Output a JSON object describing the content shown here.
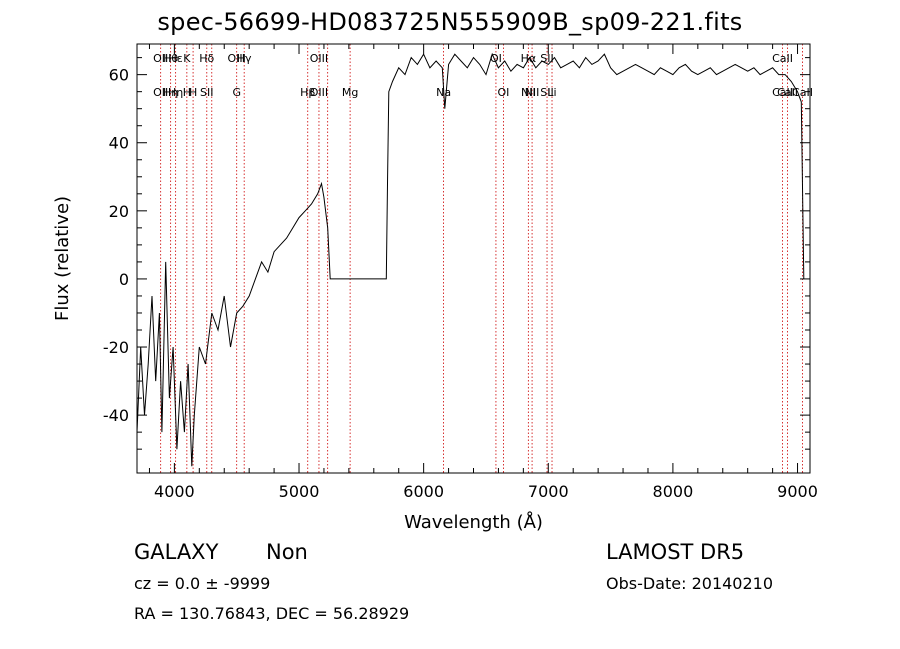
{
  "chart_data": {
    "type": "line",
    "title": "spec-56699-HD083725N555909B_sp09-221.fits",
    "xlabel": "Wavelength (Å)",
    "ylabel": "Flux (relative)",
    "xlim": [
      3700,
      9100
    ],
    "ylim": [
      -57,
      69
    ],
    "xticks": [
      4000,
      5000,
      6000,
      7000,
      8000,
      9000
    ],
    "yticks": [
      -40,
      -20,
      0,
      20,
      40,
      60
    ],
    "grid": false,
    "series": [
      {
        "x": [
          3700,
          3730,
          3760,
          3790,
          3820,
          3850,
          3880,
          3900,
          3930,
          3960,
          3990,
          4020,
          4050,
          4080,
          4110,
          4140,
          4160,
          4200,
          4250,
          4300,
          4350,
          4400,
          4450,
          4500,
          4550,
          4600,
          4650,
          4700,
          4750,
          4800,
          4850,
          4900,
          4950,
          5000,
          5050,
          5100,
          5150,
          5180,
          5200,
          5230,
          5250,
          5300,
          5400,
          5500,
          5600,
          5700,
          5710,
          5720,
          5750,
          5800,
          5850,
          5900,
          5950,
          6000,
          6050,
          6100,
          6150,
          6170,
          6200,
          6250,
          6300,
          6350,
          6400,
          6450,
          6500,
          6550,
          6600,
          6650,
          6700,
          6750,
          6800,
          6850,
          6900,
          6950,
          7000,
          7050,
          7100,
          7150,
          7200,
          7250,
          7300,
          7350,
          7400,
          7450,
          7500,
          7550,
          7600,
          7650,
          7700,
          7750,
          7800,
          7850,
          7900,
          7950,
          8000,
          8050,
          8100,
          8150,
          8200,
          8250,
          8300,
          8350,
          8400,
          8450,
          8500,
          8550,
          8600,
          8650,
          8700,
          8750,
          8800,
          8850,
          8900,
          8950,
          9000,
          9030,
          9050
        ],
        "values": [
          -45,
          -20,
          -40,
          -25,
          -5,
          -30,
          -10,
          -45,
          5,
          -35,
          -20,
          -50,
          -30,
          -45,
          -25,
          -55,
          -40,
          -20,
          -25,
          -10,
          -15,
          -5,
          -20,
          -10,
          -8,
          -5,
          0,
          5,
          2,
          8,
          10,
          12,
          15,
          18,
          20,
          22,
          25,
          28,
          24,
          15,
          0,
          0,
          0,
          0,
          0,
          0,
          28,
          55,
          58,
          62,
          60,
          65,
          63,
          66,
          62,
          64,
          62,
          50,
          63,
          66,
          64,
          62,
          65,
          63,
          60,
          66,
          62,
          64,
          61,
          63,
          62,
          65,
          62,
          64,
          63,
          65,
          62,
          63,
          64,
          62,
          65,
          63,
          64,
          66,
          62,
          60,
          61,
          62,
          63,
          62,
          61,
          60,
          62,
          61,
          60,
          62,
          63,
          61,
          60,
          61,
          62,
          60,
          61,
          62,
          63,
          62,
          61,
          62,
          60,
          61,
          62,
          60,
          60,
          58,
          55,
          52,
          0
        ]
      }
    ],
    "lines": [
      {
        "x": 3890,
        "top": "OII",
        "bottom": "OII"
      },
      {
        "x": 3970,
        "top": "Hθ",
        "bottom": "Hη"
      },
      {
        "x": 4010,
        "top": "Hε",
        "bottom": "Hη"
      },
      {
        "x": 4100,
        "top": "K",
        "bottom": "H"
      },
      {
        "x": 4150,
        "top": "",
        "bottom": "H"
      },
      {
        "x": 4260,
        "top": "Hδ",
        "bottom": "SII"
      },
      {
        "x": 4300,
        "top": "",
        "bottom": ""
      },
      {
        "x": 4500,
        "top": "OIII",
        "bottom": "G"
      },
      {
        "x": 4560,
        "top": "Hγ",
        "bottom": ""
      },
      {
        "x": 5070,
        "top": "",
        "bottom": "Hβ"
      },
      {
        "x": 5160,
        "top": "OIII",
        "bottom": "OIII"
      },
      {
        "x": 5230,
        "top": "",
        "bottom": ""
      },
      {
        "x": 5410,
        "top": "",
        "bottom": "Mg"
      },
      {
        "x": 6160,
        "top": "",
        "bottom": "Na"
      },
      {
        "x": 6580,
        "top": "OI",
        "bottom": ""
      },
      {
        "x": 6640,
        "top": "",
        "bottom": "OI"
      },
      {
        "x": 6840,
        "top": "Hα",
        "bottom": "NII"
      },
      {
        "x": 6870,
        "top": "",
        "bottom": "NII"
      },
      {
        "x": 6990,
        "top": "SII",
        "bottom": "SII"
      },
      {
        "x": 7030,
        "top": "",
        "bottom": "Li"
      },
      {
        "x": 8880,
        "top": "CaII",
        "bottom": "CaII"
      },
      {
        "x": 8920,
        "top": "",
        "bottom": "CaII"
      },
      {
        "x": 9040,
        "top": "",
        "bottom": "CaII"
      }
    ]
  },
  "info": {
    "class": "GALAXY",
    "subclass": "Non",
    "survey": "LAMOST  DR5",
    "cz": "cz = 0.0 ± -9999",
    "obs_date": "Obs-Date: 20140210",
    "radec": "RA = 130.76843,  DEC =  56.28929"
  },
  "colors": {
    "spectrum": "#000000",
    "line_markers": "#cc0000"
  }
}
